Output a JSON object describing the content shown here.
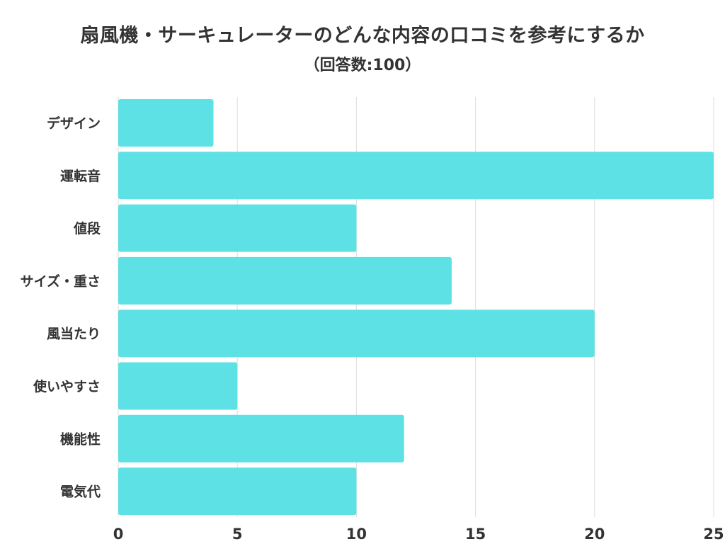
{
  "chart_data": {
    "type": "bar",
    "orientation": "horizontal",
    "title": "扇風機・サーキュレーターのどんな内容の口コミを参考にするか",
    "subtitle": "（回答数:100）",
    "categories": [
      "デザイン",
      "運転音",
      "値段",
      "サイズ・重さ",
      "風当たり",
      "使いやすさ",
      "機能性",
      "電気代"
    ],
    "values": [
      4,
      25,
      10,
      14,
      20,
      5,
      12,
      10
    ],
    "xlim": [
      0,
      25
    ],
    "xticks": [
      "0",
      "5",
      "10",
      "15",
      "20",
      "25"
    ],
    "xlabel": "",
    "ylabel": "",
    "grid": true,
    "legend": "none",
    "bar_color": "#5EE1E4",
    "grid_color": "#DDDDDD"
  }
}
